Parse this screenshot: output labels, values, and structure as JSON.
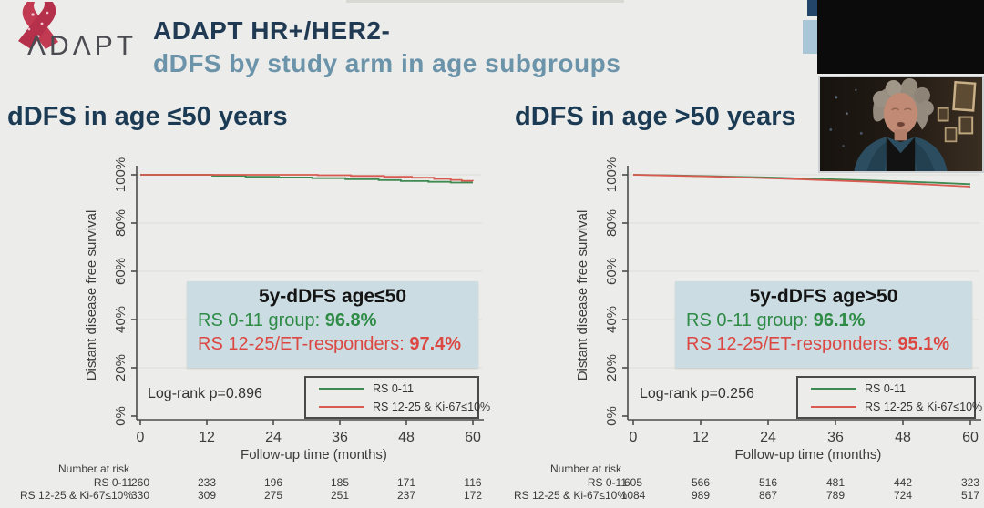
{
  "header": {
    "logo_text": "ΛDΛPT",
    "title_line1": "ADAPT HR+/HER2-",
    "title_line2": "dDFS by study arm in age subgroups"
  },
  "colors": {
    "title_navy": "#203a54",
    "subtitle_blue": "#6b93aa",
    "green_series": "#3f8a52",
    "red_series": "#d85a50",
    "stat_box_bg": "#cbdde3",
    "ribbon_pink": "#c23a52",
    "background": "#ececea"
  },
  "webcam": {
    "description": "speaker-video-feed"
  },
  "chart_data": [
    {
      "type": "line",
      "title": "dDFS in age ≤50 years",
      "xlabel": "Follow-up time (months)",
      "ylabel": "Distant disease free survival",
      "x_ticks": [
        0,
        12,
        24,
        36,
        48,
        60
      ],
      "y_ticks": [
        "0%",
        "20%",
        "40%",
        "60%",
        "80%",
        "100%"
      ],
      "xlim": [
        0,
        60
      ],
      "ylim": [
        0,
        100
      ],
      "grid": true,
      "legend_position": "lower-right",
      "logrank": "Log-rank p=0.896",
      "series": [
        {
          "name": "RS 0-11",
          "color": "#3f8a52",
          "points": [
            [
              0,
              100
            ],
            [
              13,
              100
            ],
            [
              13,
              99.6
            ],
            [
              19,
              99.6
            ],
            [
              19,
              99.2
            ],
            [
              25,
              99.2
            ],
            [
              25,
              98.9
            ],
            [
              31,
              98.9
            ],
            [
              31,
              98.6
            ],
            [
              37,
              98.6
            ],
            [
              37,
              98.2
            ],
            [
              43,
              98.2
            ],
            [
              43,
              97.8
            ],
            [
              47,
              97.8
            ],
            [
              47,
              97.4
            ],
            [
              52,
              97.4
            ],
            [
              52,
              97.1
            ],
            [
              56,
              97.1
            ],
            [
              56,
              96.8
            ],
            [
              60,
              96.8
            ]
          ]
        },
        {
          "name": "RS 12-25 & Ki-67≤10%",
          "color": "#d85a50",
          "points": [
            [
              0,
              100
            ],
            [
              32,
              100
            ],
            [
              32,
              99.8
            ],
            [
              38,
              99.8
            ],
            [
              38,
              99.5
            ],
            [
              44,
              99.5
            ],
            [
              44,
              99.2
            ],
            [
              49,
              99.2
            ],
            [
              49,
              98.8
            ],
            [
              53,
              98.8
            ],
            [
              53,
              98.3
            ],
            [
              56,
              98.3
            ],
            [
              56,
              97.9
            ],
            [
              58,
              97.9
            ],
            [
              58,
              97.5
            ],
            [
              60,
              97.5
            ],
            [
              60,
              97.4
            ]
          ]
        }
      ],
      "stat_box": {
        "title": "5y-dDFS age≤50",
        "lines": [
          {
            "label": "RS 0-11 group: ",
            "value": "96.8%"
          },
          {
            "label": "RS 12-25/ET-responders: ",
            "value": "97.4%"
          }
        ]
      },
      "risk_table": {
        "header": "Number at risk",
        "rows": [
          {
            "label": "RS 0-11",
            "values": [
              "260",
              "233",
              "196",
              "185",
              "171",
              "116"
            ]
          },
          {
            "label": "RS 12-25 & Ki-67≤10%",
            "values": [
              "330",
              "309",
              "275",
              "251",
              "237",
              "172"
            ]
          }
        ]
      }
    },
    {
      "type": "line",
      "title": "dDFS in age >50 years",
      "xlabel": "Follow-up time (months)",
      "ylabel": "Distant disease free survival",
      "x_ticks": [
        0,
        12,
        24,
        36,
        48,
        60
      ],
      "y_ticks": [
        "0%",
        "20%",
        "40%",
        "60%",
        "80%",
        "100%"
      ],
      "xlim": [
        0,
        60
      ],
      "ylim": [
        0,
        100
      ],
      "grid": true,
      "legend_position": "lower-right",
      "logrank": "Log-rank p=0.256",
      "series": [
        {
          "name": "RS 0-11",
          "color": "#3f8a52",
          "points": [
            [
              0,
              100
            ],
            [
              6,
              99.8
            ],
            [
              12,
              99.5
            ],
            [
              18,
              99.2
            ],
            [
              24,
              98.9
            ],
            [
              30,
              98.5
            ],
            [
              36,
              98.1
            ],
            [
              42,
              97.7
            ],
            [
              48,
              97.2
            ],
            [
              54,
              96.7
            ],
            [
              60,
              96.1
            ]
          ]
        },
        {
          "name": "RS 12-25 & Ki-67≤10%",
          "color": "#d85a50",
          "points": [
            [
              0,
              100
            ],
            [
              6,
              99.7
            ],
            [
              12,
              99.4
            ],
            [
              18,
              99.0
            ],
            [
              24,
              98.6
            ],
            [
              30,
              98.1
            ],
            [
              36,
              97.6
            ],
            [
              42,
              97.1
            ],
            [
              48,
              96.5
            ],
            [
              54,
              95.8
            ],
            [
              60,
              95.1
            ]
          ]
        }
      ],
      "stat_box": {
        "title": "5y-dDFS age>50",
        "lines": [
          {
            "label": "RS 0-11 group: ",
            "value": "96.1%"
          },
          {
            "label": "RS 12-25/ET-responders: ",
            "value": "95.1%"
          }
        ]
      },
      "risk_table": {
        "header": "Number at risk",
        "rows": [
          {
            "label": "RS 0-11",
            "values": [
              "605",
              "566",
              "516",
              "481",
              "442",
              "323"
            ]
          },
          {
            "label": "RS 12-25 & Ki-67≤10%",
            "values": [
              "1084",
              "989",
              "867",
              "789",
              "724",
              "517"
            ]
          }
        ]
      }
    }
  ]
}
